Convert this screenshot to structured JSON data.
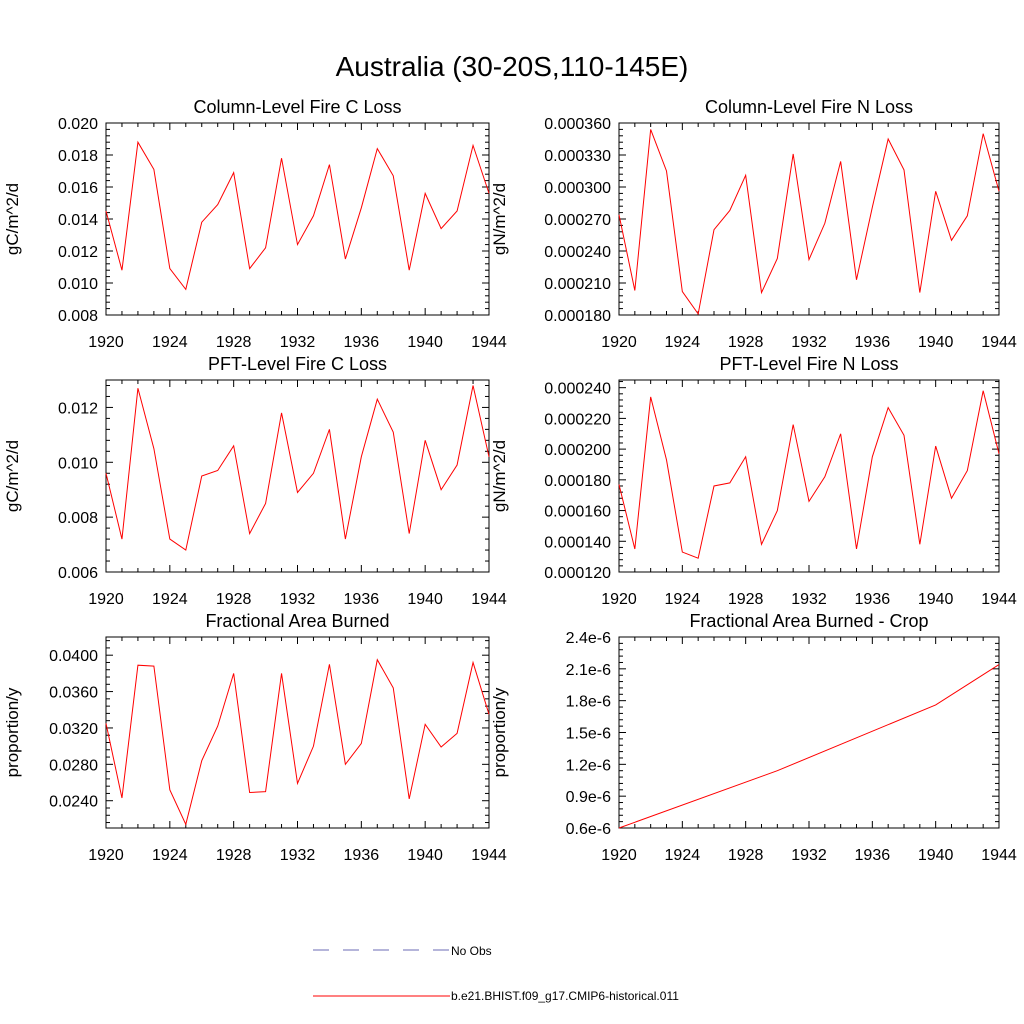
{
  "figure": {
    "title": "Australia (30-20S,110-145E)"
  },
  "legend": [
    {
      "label": "No Obs",
      "color": "#6b6bb5",
      "style": "dashed"
    },
    {
      "label": "b.e21.BHIST.f09_g17.CMIP6-historical.011",
      "color": "#ff0000",
      "style": "solid"
    }
  ],
  "chart_data": [
    {
      "type": "line",
      "title": "Column-Level Fire C Loss",
      "ylabel": "gC/m^2/d",
      "xlim": [
        1920,
        1944
      ],
      "ylim": [
        0.008,
        0.02
      ],
      "xticks": [
        "1920",
        "1924",
        "1928",
        "1932",
        "1936",
        "1940",
        "1944"
      ],
      "yticks": [
        "0.008",
        "0.010",
        "0.012",
        "0.014",
        "0.016",
        "0.018",
        "0.020"
      ],
      "x": [
        1920,
        1921,
        1922,
        1923,
        1924,
        1925,
        1926,
        1927,
        1928,
        1929,
        1930,
        1931,
        1932,
        1933,
        1934,
        1935,
        1936,
        1937,
        1938,
        1939,
        1940,
        1941,
        1942,
        1943,
        1944
      ],
      "series": [
        {
          "values": [
            0.0145,
            0.0108,
            0.0188,
            0.0171,
            0.0109,
            0.0096,
            0.0138,
            0.0149,
            0.0169,
            0.0109,
            0.0122,
            0.0178,
            0.0124,
            0.0142,
            0.0174,
            0.0115,
            0.0147,
            0.0184,
            0.0167,
            0.0108,
            0.0156,
            0.0134,
            0.0145,
            0.0186,
            0.0156
          ]
        }
      ]
    },
    {
      "type": "line",
      "title": "Column-Level Fire N Loss",
      "ylabel": "gN/m^2/d",
      "xlim": [
        1920,
        1944
      ],
      "ylim": [
        0.00018,
        0.00036
      ],
      "xticks": [
        "1920",
        "1924",
        "1928",
        "1932",
        "1936",
        "1940",
        "1944"
      ],
      "yticks": [
        "0.000180",
        "0.000210",
        "0.000240",
        "0.000270",
        "0.000300",
        "0.000330",
        "0.000360"
      ],
      "x": [
        1920,
        1921,
        1922,
        1923,
        1924,
        1925,
        1926,
        1927,
        1928,
        1929,
        1930,
        1931,
        1932,
        1933,
        1934,
        1935,
        1936,
        1937,
        1938,
        1939,
        1940,
        1941,
        1942,
        1943,
        1944
      ],
      "series": [
        {
          "values": [
            0.000274,
            0.000203,
            0.000354,
            0.000315,
            0.000202,
            0.000181,
            0.00026,
            0.000278,
            0.000311,
            0.000201,
            0.000233,
            0.000331,
            0.000232,
            0.000266,
            0.000324,
            0.000213,
            0.000281,
            0.000345,
            0.000316,
            0.000201,
            0.000296,
            0.00025,
            0.000273,
            0.00035,
            0.000296
          ]
        }
      ]
    },
    {
      "type": "line",
      "title": "PFT-Level Fire C Loss",
      "ylabel": "gC/m^2/d",
      "xlim": [
        1920,
        1944
      ],
      "ylim": [
        0.006,
        0.013
      ],
      "xticks": [
        "1920",
        "1924",
        "1928",
        "1932",
        "1936",
        "1940",
        "1944"
      ],
      "yticks": [
        "0.006",
        "0.008",
        "0.010",
        "0.012"
      ],
      "x": [
        1920,
        1921,
        1922,
        1923,
        1924,
        1925,
        1926,
        1927,
        1928,
        1929,
        1930,
        1931,
        1932,
        1933,
        1934,
        1935,
        1936,
        1937,
        1938,
        1939,
        1940,
        1941,
        1942,
        1943,
        1944
      ],
      "series": [
        {
          "values": [
            0.0096,
            0.0072,
            0.0127,
            0.0105,
            0.0072,
            0.0068,
            0.0095,
            0.0097,
            0.0106,
            0.0074,
            0.0085,
            0.0118,
            0.0089,
            0.0096,
            0.0112,
            0.0072,
            0.0102,
            0.0123,
            0.0111,
            0.0074,
            0.0108,
            0.009,
            0.0099,
            0.0128,
            0.0102
          ]
        }
      ]
    },
    {
      "type": "line",
      "title": "PFT-Level Fire N Loss",
      "ylabel": "gN/m^2/d",
      "xlim": [
        1920,
        1944
      ],
      "ylim": [
        0.00012,
        0.000245
      ],
      "xticks": [
        "1920",
        "1924",
        "1928",
        "1932",
        "1936",
        "1940",
        "1944"
      ],
      "yticks": [
        "0.000120",
        "0.000140",
        "0.000160",
        "0.000180",
        "0.000200",
        "0.000220",
        "0.000240"
      ],
      "x": [
        1920,
        1921,
        1922,
        1923,
        1924,
        1925,
        1926,
        1927,
        1928,
        1929,
        1930,
        1931,
        1932,
        1933,
        1934,
        1935,
        1936,
        1937,
        1938,
        1939,
        1940,
        1941,
        1942,
        1943,
        1944
      ],
      "series": [
        {
          "values": [
            0.000177,
            0.000135,
            0.000234,
            0.000193,
            0.000133,
            0.000129,
            0.000176,
            0.000178,
            0.000195,
            0.000138,
            0.00016,
            0.000216,
            0.000166,
            0.000182,
            0.00021,
            0.000135,
            0.000195,
            0.000227,
            0.000209,
            0.000138,
            0.000202,
            0.000168,
            0.000186,
            0.000238,
            0.000197
          ]
        }
      ]
    },
    {
      "type": "line",
      "title": "Fractional Area Burned",
      "ylabel": "proportion/y",
      "xlim": [
        1920,
        1944
      ],
      "ylim": [
        0.021,
        0.042
      ],
      "xticks": [
        "1920",
        "1924",
        "1928",
        "1932",
        "1936",
        "1940",
        "1944"
      ],
      "yticks": [
        "0.0240",
        "0.0280",
        "0.0320",
        "0.0360",
        "0.0400"
      ],
      "x": [
        1920,
        1921,
        1922,
        1923,
        1924,
        1925,
        1926,
        1927,
        1928,
        1929,
        1930,
        1931,
        1932,
        1933,
        1934,
        1935,
        1936,
        1937,
        1938,
        1939,
        1940,
        1941,
        1942,
        1943,
        1944
      ],
      "series": [
        {
          "values": [
            0.0325,
            0.0243,
            0.0389,
            0.0388,
            0.0252,
            0.0214,
            0.0284,
            0.0322,
            0.038,
            0.0249,
            0.025,
            0.038,
            0.0259,
            0.03,
            0.039,
            0.028,
            0.0303,
            0.0395,
            0.0364,
            0.0242,
            0.0324,
            0.0299,
            0.0314,
            0.0392,
            0.0335
          ]
        }
      ]
    },
    {
      "type": "line",
      "title": "Fractional Area Burned - Crop",
      "ylabel": "proportion/y",
      "xlim": [
        1920,
        1944
      ],
      "ylim": [
        6e-07,
        2.4e-06
      ],
      "xticks": [
        "1920",
        "1924",
        "1928",
        "1932",
        "1936",
        "1940",
        "1944"
      ],
      "yticks": [
        "0.6e-6",
        "0.9e-6",
        "1.2e-6",
        "1.5e-6",
        "1.8e-6",
        "2.1e-6",
        "2.4e-6"
      ],
      "x": [
        1920,
        1930,
        1940,
        1944
      ],
      "series": [
        {
          "values": [
            6e-07,
            1.14e-06,
            1.76e-06,
            2.14e-06
          ]
        }
      ]
    }
  ]
}
